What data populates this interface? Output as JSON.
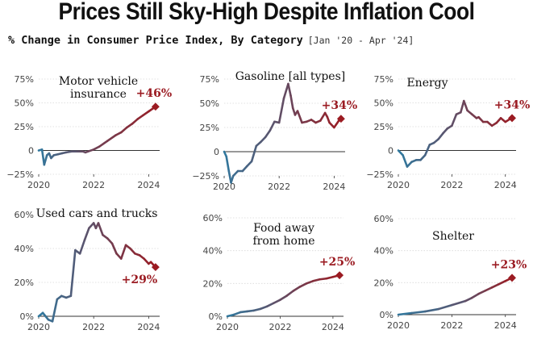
{
  "title": "Prices Still Sky-High Despite Inflation Cool",
  "subtitle": "% Change in Consumer Price Index, By Category",
  "date_range": "[Jan '20 - Apr '24]",
  "colors": {
    "start": "#2f7aa0",
    "end": "#9b1b22",
    "grid": "#d8d8d8",
    "axis": "#333333"
  },
  "chart_data": [
    {
      "type": "line",
      "title_lines": [
        "Motor vehicle",
        "insurance"
      ],
      "end_label": "+46%",
      "xlim": [
        2020,
        2024.4
      ],
      "ylim": [
        -25,
        75
      ],
      "yticks": [
        -25,
        0,
        25,
        50,
        75
      ],
      "ytick_labels": [
        "−25%",
        "0",
        "25%",
        "50%",
        "75%"
      ],
      "xticks": [
        2020,
        2022,
        2024
      ],
      "xtick_labels": [
        "2020",
        "2022",
        "2024"
      ],
      "x": [
        2020.0,
        2020.12,
        2020.2,
        2020.3,
        2020.38,
        2020.45,
        2020.55,
        2020.7,
        2020.85,
        2021.0,
        2021.2,
        2021.4,
        2021.5,
        2021.6,
        2021.7,
        2021.8,
        2022.0,
        2022.2,
        2022.5,
        2022.8,
        2023.0,
        2023.2,
        2023.4,
        2023.6,
        2023.8,
        2024.0,
        2024.15,
        2024.25
      ],
      "y": [
        0,
        1,
        -15,
        -5,
        -3,
        -8,
        -5,
        -4,
        -3,
        -2,
        -1,
        -1,
        -1,
        -1,
        -2,
        -1,
        1,
        4,
        10,
        16,
        19,
        24,
        28,
        33,
        37,
        41,
        44,
        46
      ]
    },
    {
      "type": "line",
      "title_lines": [
        "Gasoline [all types]"
      ],
      "end_label": "+34%",
      "xlim": [
        2020,
        2024.4
      ],
      "ylim": [
        -25,
        75
      ],
      "yticks": [
        -25,
        0,
        25,
        50,
        75
      ],
      "ytick_labels": [
        "−25%",
        "0",
        "25%",
        "50%",
        "75%"
      ],
      "xticks": [
        2020,
        2022,
        2024
      ],
      "xtick_labels": [
        "2020",
        "2022",
        "2024"
      ],
      "x": [
        2020.0,
        2020.08,
        2020.17,
        2020.25,
        2020.33,
        2020.5,
        2020.67,
        2020.83,
        2021.0,
        2021.17,
        2021.33,
        2021.5,
        2021.67,
        2021.83,
        2022.0,
        2022.17,
        2022.33,
        2022.42,
        2022.5,
        2022.58,
        2022.67,
        2022.83,
        2023.0,
        2023.17,
        2023.33,
        2023.5,
        2023.67,
        2023.75,
        2023.83,
        2024.0,
        2024.17,
        2024.25
      ],
      "y": [
        0,
        -5,
        -20,
        -32,
        -25,
        -20,
        -20,
        -15,
        -10,
        6,
        10,
        15,
        22,
        31,
        30,
        55,
        70,
        58,
        45,
        38,
        42,
        30,
        31,
        33,
        30,
        32,
        40,
        36,
        30,
        25,
        32,
        34
      ]
    },
    {
      "type": "line",
      "title_lines": [
        "Energy"
      ],
      "end_label": "+34%",
      "xlim": [
        2020,
        2024.4
      ],
      "ylim": [
        -25,
        75
      ],
      "yticks": [
        -25,
        0,
        25,
        50,
        75
      ],
      "ytick_labels": [
        "−25%",
        "0",
        "25%",
        "50%",
        "75%"
      ],
      "xticks": [
        2020,
        2022,
        2024
      ],
      "xtick_labels": [
        "2020",
        "2022",
        "2024"
      ],
      "x": [
        2020.0,
        2020.17,
        2020.33,
        2020.5,
        2020.67,
        2020.83,
        2021.0,
        2021.17,
        2021.33,
        2021.5,
        2021.67,
        2021.83,
        2022.0,
        2022.17,
        2022.33,
        2022.45,
        2022.58,
        2022.75,
        2022.92,
        2023.0,
        2023.17,
        2023.33,
        2023.5,
        2023.67,
        2023.83,
        2024.0,
        2024.17,
        2024.25
      ],
      "y": [
        0,
        -5,
        -17,
        -12,
        -10,
        -10,
        -5,
        6,
        8,
        12,
        18,
        23,
        26,
        38,
        40,
        52,
        42,
        38,
        34,
        35,
        30,
        30,
        26,
        29,
        34,
        30,
        33,
        34
      ]
    },
    {
      "type": "line",
      "title_lines": [
        "Used cars and trucks"
      ],
      "end_label": "+29%",
      "xlim": [
        2020,
        2024.4
      ],
      "ylim": [
        0,
        60
      ],
      "yticks": [
        0,
        20,
        40,
        60
      ],
      "ytick_labels": [
        "0%",
        "20%",
        "40%",
        "60%"
      ],
      "xticks": [
        2020,
        2022,
        2024
      ],
      "xtick_labels": [
        "2020",
        "2022",
        "2024"
      ],
      "x": [
        2020.0,
        2020.15,
        2020.25,
        2020.35,
        2020.5,
        2020.67,
        2020.83,
        2021.0,
        2021.17,
        2021.33,
        2021.5,
        2021.67,
        2021.83,
        2022.0,
        2022.08,
        2022.17,
        2022.33,
        2022.5,
        2022.67,
        2022.83,
        2023.0,
        2023.17,
        2023.33,
        2023.5,
        2023.67,
        2023.83,
        2024.0,
        2024.08,
        2024.25
      ],
      "y": [
        0,
        2,
        0,
        -2,
        -3,
        10,
        12,
        11,
        12,
        39,
        37,
        45,
        52,
        55,
        52,
        55,
        48,
        46,
        43,
        37,
        34,
        42,
        40,
        37,
        36,
        34,
        31,
        32,
        29
      ]
    },
    {
      "type": "line",
      "title_lines": [
        "Food away",
        "from home"
      ],
      "end_label": "+25%",
      "xlim": [
        2020,
        2024.4
      ],
      "ylim": [
        0,
        60
      ],
      "yticks": [
        0,
        20,
        40,
        60
      ],
      "ytick_labels": [
        "0%",
        "20%",
        "40%",
        "60%"
      ],
      "xticks": [
        2020,
        2022,
        2024
      ],
      "xtick_labels": [
        "2020",
        "2022",
        "2024"
      ],
      "x": [
        2020.0,
        2020.25,
        2020.5,
        2020.75,
        2021.0,
        2021.25,
        2021.5,
        2021.75,
        2022.0,
        2022.25,
        2022.5,
        2022.75,
        2023.0,
        2023.25,
        2023.5,
        2023.75,
        2024.0,
        2024.25
      ],
      "y": [
        0,
        1,
        2.5,
        3,
        3.5,
        4.5,
        6,
        8,
        10,
        12.5,
        15.5,
        18,
        20,
        21.5,
        22.5,
        23,
        24,
        25
      ]
    },
    {
      "type": "line",
      "title_lines": [
        "Shelter"
      ],
      "end_label": "+23%",
      "xlim": [
        2020,
        2024.4
      ],
      "ylim": [
        0,
        60
      ],
      "yticks": [
        0,
        20,
        40,
        60
      ],
      "ytick_labels": [
        "0%",
        "20%",
        "40%",
        "60%"
      ],
      "xticks": [
        2020,
        2022,
        2024
      ],
      "xtick_labels": [
        "2020",
        "2022",
        "2024"
      ],
      "x": [
        2020.0,
        2020.5,
        2021.0,
        2021.5,
        2022.0,
        2022.5,
        2022.75,
        2023.0,
        2023.25,
        2023.5,
        2023.75,
        2024.0,
        2024.25
      ],
      "y": [
        0,
        1,
        2,
        3.5,
        6,
        8.5,
        10.5,
        13,
        15,
        17,
        19,
        21,
        23
      ]
    }
  ]
}
